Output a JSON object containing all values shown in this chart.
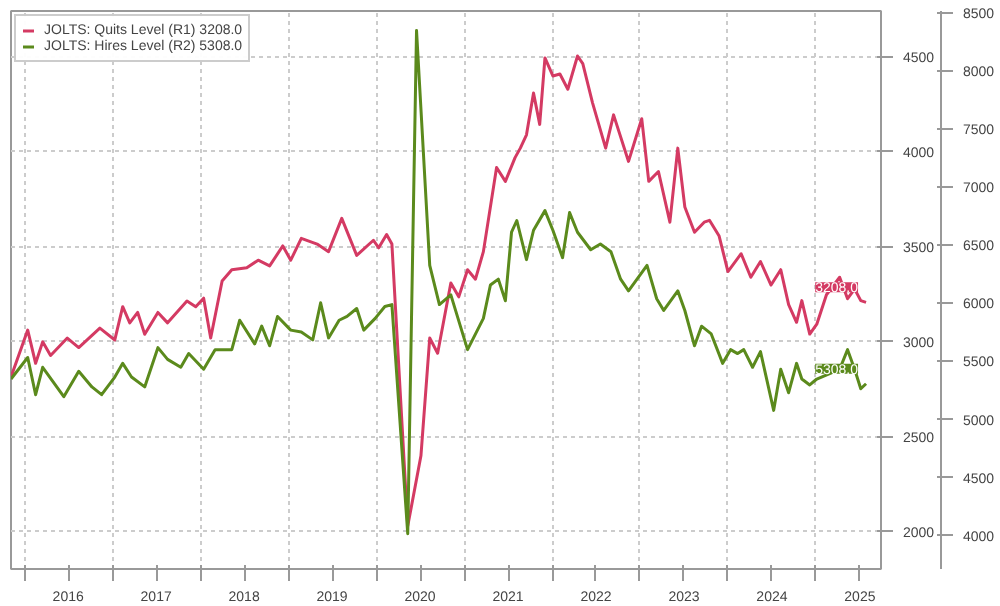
{
  "chart_data": {
    "type": "line",
    "legend": "top left",
    "grid": true,
    "line_style": "solid",
    "xlim": [
      2015.85,
      2025.74
    ],
    "ylim": [
      1804,
      4742
    ],
    "yticks": [
      2000,
      2500,
      3000,
      3500,
      4000,
      4500
    ],
    "y2lim": [
      3713,
      8518
    ],
    "y2ticks": [
      4000,
      4500,
      5000,
      5500,
      6000,
      6500,
      7000,
      7500,
      8000,
      8500
    ],
    "xticks": [
      {
        "value": 2016,
        "label": null
      },
      {
        "value": 2016.5,
        "label": "2016"
      },
      {
        "value": 2017,
        "label": null
      },
      {
        "value": 2017.5,
        "label": "2017"
      },
      {
        "value": 2018,
        "label": null
      },
      {
        "value": 2018.5,
        "label": "2018"
      },
      {
        "value": 2019,
        "label": null
      },
      {
        "value": 2019.5,
        "label": "2019"
      },
      {
        "value": 2020,
        "label": null
      },
      {
        "value": 2020.5,
        "label": "2020"
      },
      {
        "value": 2021,
        "label": null
      },
      {
        "value": 2021.5,
        "label": "2021"
      },
      {
        "value": 2022,
        "label": null
      },
      {
        "value": 2022.5,
        "label": "2022"
      },
      {
        "value": 2023,
        "label": null
      },
      {
        "value": 2023.5,
        "label": "2023"
      },
      {
        "value": 2024,
        "label": null
      },
      {
        "value": 2024.5,
        "label": "2024"
      },
      {
        "value": 2025,
        "label": null
      },
      {
        "value": 2025.5,
        "label": "2025"
      }
    ],
    "series": [
      {
        "name": "JOLTS: Quits Level (R1) 3208.0",
        "color": "#d43a63",
        "x": [
          2015.85,
          2016.04,
          2016.13,
          2016.21,
          2016.3,
          2016.49,
          2016.62,
          2016.86,
          2017.03,
          2017.12,
          2017.2,
          2017.29,
          2017.37,
          2017.52,
          2017.63,
          2017.85,
          2017.95,
          2018.04,
          2018.12,
          2018.25,
          2018.36,
          2018.53,
          2018.66,
          2018.79,
          2018.94,
          2019.03,
          2019.15,
          2019.33,
          2019.46,
          2019.61,
          2019.78,
          2019.97,
          2020.03,
          2020.12,
          2020.18,
          2020.36,
          2020.51,
          2020.61,
          2020.7,
          2020.85,
          2020.94,
          2021.04,
          2021.13,
          2021.22,
          2021.37,
          2021.47,
          2021.58,
          2021.64,
          2021.71,
          2021.79,
          2021.86,
          2021.92,
          2022.01,
          2022.09,
          2022.18,
          2022.29,
          2022.35,
          2022.46,
          2022.61,
          2022.7,
          2022.87,
          2023.02,
          2023.1,
          2023.21,
          2023.34,
          2023.43,
          2023.51,
          2023.62,
          2023.73,
          2023.79,
          2023.9,
          2024.0,
          2024.15,
          2024.26,
          2024.37,
          2024.49,
          2024.6,
          2024.69,
          2024.78,
          2024.84,
          2024.93,
          2025.01,
          2025.12,
          2025.27,
          2025.36,
          2025.44,
          2025.51,
          2025.57
        ],
        "values": [
          2815,
          3062,
          2887,
          3000,
          2928,
          3020,
          2970,
          3072,
          3010,
          3185,
          3100,
          3155,
          3040,
          3155,
          3100,
          3215,
          3185,
          3230,
          3020,
          3320,
          3380,
          3390,
          3430,
          3400,
          3505,
          3430,
          3545,
          3515,
          3475,
          3650,
          3455,
          3535,
          3495,
          3565,
          3515,
          2030,
          2400,
          3020,
          2940,
          3310,
          3237,
          3380,
          3330,
          3475,
          3918,
          3845,
          3970,
          4020,
          4090,
          4310,
          4145,
          4495,
          4400,
          4410,
          4330,
          4505,
          4465,
          4260,
          4020,
          4195,
          3950,
          4175,
          3845,
          3897,
          3630,
          4020,
          3710,
          3577,
          3630,
          3640,
          3557,
          3370,
          3464,
          3340,
          3423,
          3299,
          3380,
          3196,
          3103,
          3217,
          3041,
          3093,
          3248,
          3340,
          3227,
          3278,
          3217,
          3208
        ],
        "value_labels": [
          null,
          null,
          null,
          null,
          null,
          null,
          null,
          null,
          null,
          null,
          null,
          null,
          null,
          null,
          null,
          null,
          null,
          null,
          null,
          null,
          null,
          null,
          null,
          null,
          null,
          null,
          null,
          null,
          null,
          null,
          null,
          null,
          null,
          null,
          null,
          null,
          null,
          null,
          null,
          null,
          null,
          null,
          null,
          null,
          null,
          null,
          null,
          null,
          null,
          null,
          null,
          null,
          null,
          null,
          null,
          null,
          null,
          null,
          null,
          null,
          null,
          null,
          null,
          null,
          null,
          null,
          null,
          null,
          null,
          null,
          null,
          null,
          null,
          null,
          null,
          null,
          null,
          null,
          null,
          null,
          null,
          null,
          null,
          null,
          null,
          null,
          null,
          "3208.0"
        ]
      },
      {
        "name": "JOLTS: Hires Level (R2) 5308.0",
        "color": "#5b8a1c",
        "axis": "y2",
        "x": [
          2015.85,
          2016.04,
          2016.13,
          2016.21,
          2016.45,
          2016.62,
          2016.77,
          2016.88,
          2017.03,
          2017.12,
          2017.22,
          2017.37,
          2017.52,
          2017.63,
          2017.78,
          2017.87,
          2018.04,
          2018.17,
          2018.36,
          2018.45,
          2018.62,
          2018.7,
          2018.79,
          2018.88,
          2019.03,
          2019.15,
          2019.28,
          2019.37,
          2019.46,
          2019.58,
          2019.67,
          2019.78,
          2019.86,
          2019.99,
          2020.1,
          2020.18,
          2020.36,
          2020.46,
          2020.61,
          2020.72,
          2020.85,
          2021.04,
          2021.22,
          2021.3,
          2021.39,
          2021.47,
          2021.54,
          2021.6,
          2021.71,
          2021.79,
          2021.92,
          2022.01,
          2022.12,
          2022.2,
          2022.29,
          2022.44,
          2022.55,
          2022.67,
          2022.78,
          2022.87,
          2023.08,
          2023.19,
          2023.27,
          2023.43,
          2023.51,
          2023.62,
          2023.7,
          2023.81,
          2023.94,
          2024.03,
          2024.11,
          2024.18,
          2024.28,
          2024.37,
          2024.52,
          2024.6,
          2024.69,
          2024.78,
          2024.84,
          2024.93,
          2025.01,
          2025.27,
          2025.36,
          2025.44,
          2025.51,
          2025.57
        ],
        "values": [
          5349,
          5534,
          5214,
          5450,
          5197,
          5416,
          5281,
          5214,
          5366,
          5484,
          5366,
          5281,
          5619,
          5518,
          5450,
          5568,
          5433,
          5602,
          5602,
          5855,
          5652,
          5804,
          5635,
          5888,
          5770,
          5753,
          5686,
          6006,
          5703,
          5855,
          5888,
          5956,
          5770,
          5871,
          5973,
          5990,
          4017,
          8350,
          6327,
          5990,
          6074,
          5602,
          5871,
          6158,
          6209,
          6023,
          6613,
          6714,
          6377,
          6630,
          6799,
          6630,
          6394,
          6782,
          6613,
          6462,
          6512,
          6445,
          6209,
          6108,
          6327,
          6040,
          5939,
          6108,
          5939,
          5635,
          5804,
          5737,
          5484,
          5602,
          5568,
          5602,
          5450,
          5585,
          5079,
          5433,
          5231,
          5484,
          5349,
          5298,
          5349,
          5433,
          5602,
          5433,
          5265,
          5308
        ],
        "value_labels": [
          null,
          null,
          null,
          null,
          null,
          null,
          null,
          null,
          null,
          null,
          null,
          null,
          null,
          null,
          null,
          null,
          null,
          null,
          null,
          null,
          null,
          null,
          null,
          null,
          null,
          null,
          null,
          null,
          null,
          null,
          null,
          null,
          null,
          null,
          null,
          null,
          null,
          null,
          null,
          null,
          null,
          null,
          null,
          null,
          null,
          null,
          null,
          null,
          null,
          null,
          null,
          null,
          null,
          null,
          null,
          null,
          null,
          null,
          null,
          null,
          null,
          null,
          null,
          null,
          null,
          null,
          null,
          null,
          null,
          null,
          null,
          null,
          null,
          null,
          null,
          null,
          null,
          null,
          null,
          null,
          null,
          null,
          null,
          null,
          null,
          "5308.0"
        ]
      }
    ]
  }
}
